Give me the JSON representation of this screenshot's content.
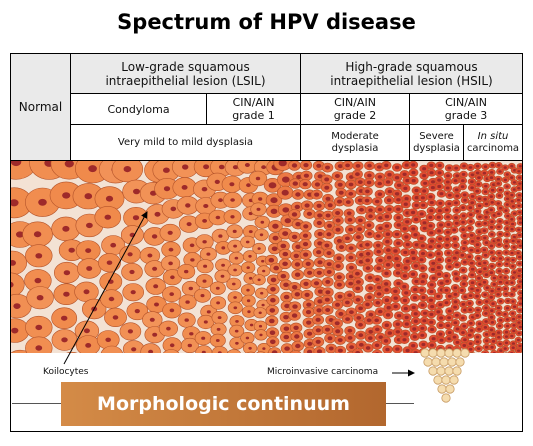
{
  "title": "Spectrum of HPV disease",
  "table": {
    "normal": "Normal",
    "lsil_line1": "Low-grade squamous",
    "lsil_line2": "intraepithelial lesion (LSIL)",
    "hsil_line1": "High-grade squamous",
    "hsil_line2": "intraepithelial lesion (HSIL)",
    "condyloma": "Condyloma",
    "cin1_line1": "CIN/AIN",
    "cin1_line2": "grade 1",
    "cin2_line1": "CIN/AIN",
    "cin2_line2": "grade 2",
    "cin3_line1": "CIN/AIN",
    "cin3_line2": "grade 3",
    "mild": "Very mild to mild dysplasia",
    "moderate_line1": "Moderate",
    "moderate_line2": "dysplasia",
    "severe_line1": "Severe",
    "severe_line2": "dysplasia",
    "insitu_line1": "In situ",
    "insitu_line2": "carcinoma"
  },
  "labels": {
    "koilocytes": "Koilocytes",
    "microinvasive": "Microinvasive carcinoma"
  },
  "banner": "Morphologic continuum",
  "colors": {
    "normal_cell": "#f08a4b",
    "normal_cell_edge": "#b4532a",
    "nucleus": "#9e2a2a",
    "dysplastic_cell": "#e24a30",
    "carcinoma_cell": "#f5dcae"
  }
}
